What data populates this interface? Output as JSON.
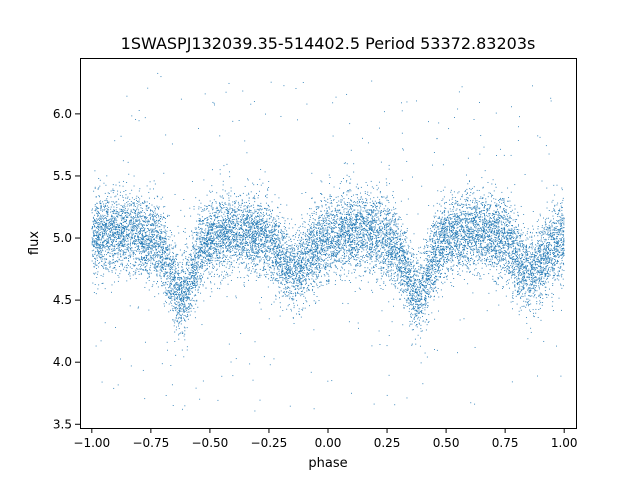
{
  "chart_data": {
    "type": "scatter",
    "title": "1SWASPJ132039.35-514402.5 Period 53372.83203s",
    "xlabel": "phase",
    "ylabel": "flux",
    "xlim": [
      -1.05,
      1.05
    ],
    "ylim": [
      3.47,
      6.45
    ],
    "xticks": [
      -1.0,
      -0.75,
      -0.5,
      -0.25,
      0.0,
      0.25,
      0.5,
      0.75,
      1.0
    ],
    "xtick_labels": [
      "−1.00",
      "−0.75",
      "−0.50",
      "−0.25",
      "0.00",
      "0.25",
      "0.50",
      "0.75",
      "1.00"
    ],
    "yticks": [
      3.5,
      4.0,
      4.5,
      5.0,
      5.5,
      6.0
    ],
    "ytick_labels": [
      "3.5",
      "4.0",
      "4.5",
      "5.0",
      "5.5",
      "6.0"
    ],
    "grid": false,
    "marker_color": "#1f77b4",
    "series": [
      {
        "x_range": [
          -1.0,
          1.0
        ],
        "n_points": 14000,
        "mean_flux": 5.0,
        "scatter_sigma": 0.16,
        "primary_minima": {
          "phase": [
            -0.62,
            0.38
          ],
          "flux": 4.65
        },
        "secondary_minima": {
          "phase": [
            -0.14,
            0.86
          ],
          "flux": 4.82
        },
        "maxima": {
          "phase": [
            -0.88,
            -0.4,
            0.12,
            0.62
          ],
          "flux": 5.05
        },
        "outlier_range": [
          3.6,
          6.35
        ]
      }
    ]
  }
}
